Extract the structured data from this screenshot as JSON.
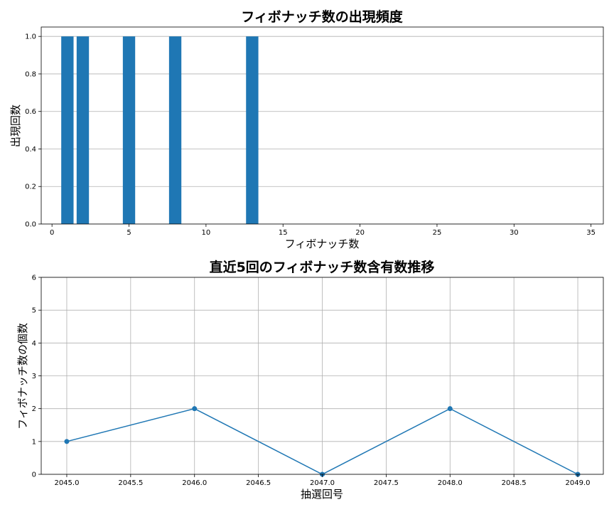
{
  "chart_data": [
    {
      "type": "bar",
      "title": "フィボナッチ数の出現頻度",
      "xlabel": "フィボナッチ数",
      "ylabel": "出現回数",
      "x": [
        1,
        2,
        5,
        8,
        13
      ],
      "values": [
        1,
        1,
        1,
        1,
        1
      ],
      "xlim": [
        -0.7,
        35.8
      ],
      "ylim": [
        0,
        1.05
      ],
      "xticks": [
        0,
        5,
        10,
        15,
        20,
        25,
        30,
        35
      ],
      "xtick_labels": [
        "0",
        "5",
        "10",
        "15",
        "20",
        "25",
        "30",
        "35"
      ],
      "yticks": [
        0,
        0.2,
        0.4,
        0.6,
        0.8,
        1.0
      ],
      "ytick_labels": [
        "0.0",
        "0.2",
        "0.4",
        "0.6",
        "0.8",
        "1.0"
      ],
      "grid": "y",
      "color": "#1f77b4"
    },
    {
      "type": "line",
      "title": "直近5回のフィボナッチ数含有数推移",
      "xlabel": "抽選回号",
      "ylabel": "フィボナッチ数の個数",
      "x": [
        2045,
        2046,
        2047,
        2048,
        2049
      ],
      "y": [
        1,
        2,
        0,
        2,
        0
      ],
      "xlim": [
        2044.8,
        2049.2
      ],
      "ylim": [
        0,
        6
      ],
      "xticks": [
        2045.0,
        2045.5,
        2046.0,
        2046.5,
        2047.0,
        2047.5,
        2048.0,
        2048.5,
        2049.0
      ],
      "xtick_labels": [
        "2045.0",
        "2045.5",
        "2046.0",
        "2046.5",
        "2047.0",
        "2047.5",
        "2048.0",
        "2048.5",
        "2049.0"
      ],
      "yticks": [
        0,
        1,
        2,
        3,
        4,
        5,
        6
      ],
      "ytick_labels": [
        "0",
        "1",
        "2",
        "3",
        "4",
        "5",
        "6"
      ],
      "grid": "both",
      "marker": "circle",
      "color": "#1f77b4"
    }
  ]
}
